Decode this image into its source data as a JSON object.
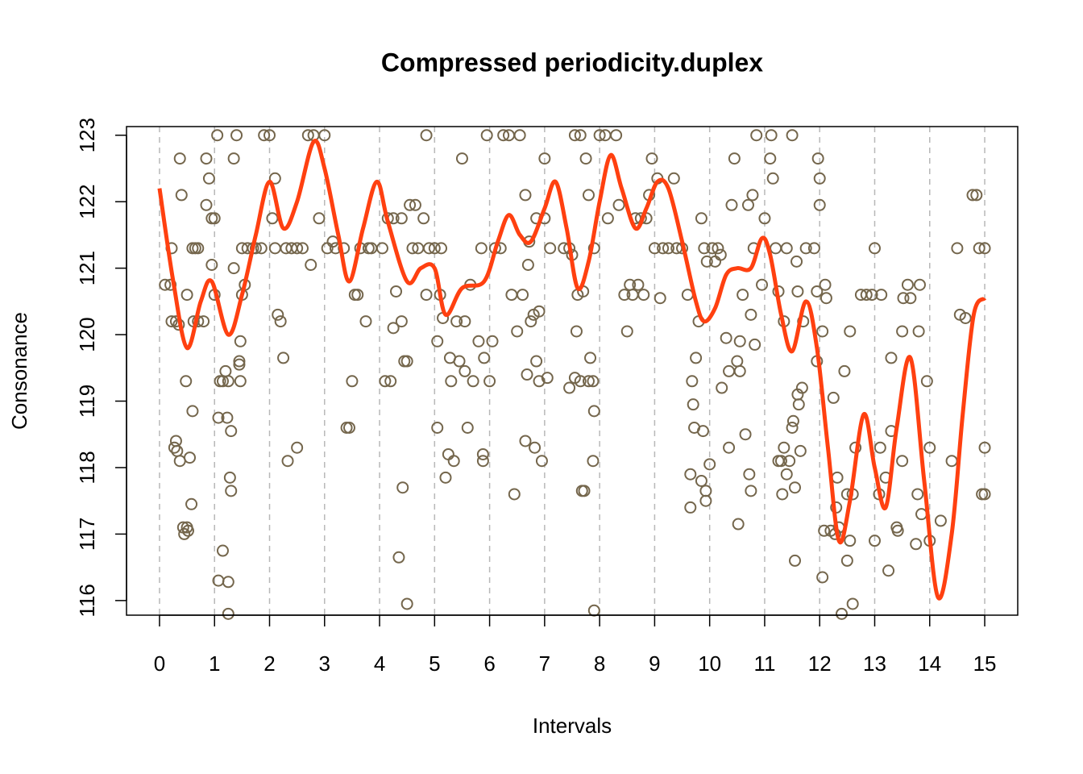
{
  "chart_data": {
    "type": "scatter",
    "title": "Compressed periodicity.duplex",
    "x_label": "Intervals",
    "y_label": "Consonance",
    "xlim": [
      -0.6,
      15.6
    ],
    "ylim": [
      115.78,
      123.13
    ],
    "xticks": [
      0,
      1,
      2,
      3,
      4,
      5,
      6,
      7,
      8,
      9,
      10,
      11,
      12,
      13,
      14,
      15
    ],
    "yticks": [
      116,
      117,
      118,
      119,
      120,
      121,
      122,
      123
    ],
    "vertical_grid": true,
    "points": {
      "color": "#74664c",
      "x": [
        0.1,
        0.2,
        0.22,
        0.22,
        0.3,
        0.35,
        0.37,
        0.4,
        0.27,
        0.3,
        0.32,
        0.37,
        0.43,
        0.45,
        0.5,
        0.52,
        0.48,
        0.5,
        0.55,
        0.58,
        0.6,
        0.6,
        0.65,
        0.7,
        0.62,
        0.7,
        0.8,
        0.85,
        0.85,
        0.9,
        0.95,
        1.0,
        0.95,
        1.0,
        1.05,
        1.07,
        1.07,
        1.15,
        1.1,
        1.15,
        1.2,
        1.25,
        1.23,
        1.25,
        1.28,
        1.3,
        1.3,
        1.25,
        1.35,
        1.35,
        1.4,
        1.45,
        1.45,
        1.47,
        1.47,
        1.5,
        1.5,
        1.55,
        1.6,
        1.7,
        1.75,
        1.85,
        1.9,
        2.0,
        2.05,
        2.1,
        2.1,
        2.15,
        2.2,
        2.25,
        2.3,
        2.33,
        2.4,
        2.5,
        2.5,
        2.6,
        2.7,
        2.75,
        2.8,
        2.9,
        3.0,
        3.05,
        3.15,
        3.2,
        3.35,
        3.4,
        3.45,
        3.5,
        3.55,
        3.6,
        3.65,
        3.75,
        3.8,
        3.85,
        4.05,
        4.1,
        4.15,
        4.2,
        4.25,
        4.25,
        4.3,
        4.35,
        4.4,
        4.4,
        4.42,
        4.45,
        4.5,
        4.5,
        4.55,
        4.6,
        4.65,
        4.7,
        4.8,
        4.85,
        4.85,
        4.9,
        5.0,
        5.05,
        5.05,
        5.1,
        5.12,
        5.15,
        5.2,
        5.25,
        5.28,
        5.3,
        5.35,
        5.4,
        5.45,
        5.5,
        5.55,
        5.55,
        5.6,
        5.65,
        5.7,
        5.8,
        5.85,
        5.88,
        5.88,
        5.9,
        5.95,
        6.0,
        6.05,
        6.1,
        6.2,
        6.25,
        6.35,
        6.4,
        6.45,
        6.5,
        6.55,
        6.6,
        6.65,
        6.65,
        6.68,
        6.7,
        6.72,
        6.75,
        6.8,
        6.82,
        6.85,
        6.85,
        6.9,
        6.9,
        6.95,
        7.0,
        7.0,
        7.05,
        7.1,
        7.35,
        7.45,
        7.45,
        7.5,
        7.55,
        7.55,
        7.58,
        7.6,
        7.65,
        7.65,
        7.68,
        7.7,
        7.72,
        7.75,
        7.8,
        7.8,
        7.83,
        7.88,
        7.88,
        7.9,
        7.9,
        7.9,
        8.0,
        8.1,
        8.15,
        8.3,
        8.35,
        8.45,
        8.5,
        8.55,
        8.6,
        8.65,
        8.7,
        8.75,
        8.8,
        8.85,
        8.9,
        8.95,
        9.0,
        9.05,
        9.1,
        9.15,
        9.25,
        9.35,
        9.4,
        9.5,
        9.6,
        9.65,
        9.65,
        9.68,
        9.7,
        9.72,
        9.75,
        9.8,
        9.85,
        9.85,
        9.88,
        9.9,
        9.93,
        9.93,
        9.95,
        10.0,
        10.05,
        10.1,
        10.15,
        10.2,
        10.22,
        10.3,
        10.35,
        10.35,
        10.4,
        10.45,
        10.5,
        10.52,
        10.55,
        10.55,
        10.6,
        10.65,
        10.7,
        10.72,
        10.75,
        10.75,
        10.78,
        10.8,
        10.82,
        10.85,
        10.95,
        11.0,
        11.1,
        11.12,
        11.15,
        11.2,
        11.25,
        11.25,
        11.3,
        11.32,
        11.35,
        11.35,
        11.4,
        11.4,
        11.45,
        11.5,
        11.5,
        11.52,
        11.55,
        11.55,
        11.58,
        11.6,
        11.6,
        11.62,
        11.65,
        11.68,
        11.7,
        11.75,
        11.9,
        11.95,
        11.95,
        11.97,
        12.0,
        12.0,
        12.05,
        12.05,
        12.08,
        12.1,
        12.12,
        12.2,
        12.25,
        12.28,
        12.3,
        12.32,
        12.35,
        12.4,
        12.45,
        12.5,
        12.5,
        12.55,
        12.55,
        12.6,
        12.6,
        12.65,
        12.75,
        12.85,
        12.95,
        13.0,
        13.0,
        13.08,
        13.1,
        13.12,
        13.2,
        13.25,
        13.3,
        13.3,
        13.4,
        13.42,
        13.5,
        13.5,
        13.52,
        13.6,
        13.65,
        13.75,
        13.78,
        13.8,
        13.82,
        13.85,
        13.95,
        14.0,
        14.0,
        14.2,
        14.4,
        14.5,
        14.55,
        14.65,
        14.78,
        14.85,
        14.9,
        14.95,
        15.0,
        15.0,
        15.0
      ],
      "y": [
        120.75,
        120.75,
        121.3,
        120.2,
        120.2,
        120.15,
        122.65,
        122.1,
        118.3,
        118.4,
        118.25,
        118.1,
        117.1,
        117.0,
        117.1,
        117.05,
        119.3,
        120.6,
        118.15,
        117.45,
        118.85,
        121.3,
        121.3,
        121.3,
        120.2,
        120.2,
        120.2,
        122.65,
        121.95,
        122.35,
        121.75,
        121.75,
        121.05,
        120.6,
        123.0,
        118.75,
        116.3,
        116.75,
        119.3,
        119.3,
        119.45,
        119.3,
        118.75,
        116.28,
        117.85,
        117.65,
        118.55,
        115.8,
        121.0,
        122.65,
        123.0,
        119.55,
        119.6,
        119.9,
        119.3,
        120.6,
        121.3,
        120.75,
        121.3,
        121.3,
        121.3,
        121.3,
        123.0,
        123.0,
        121.75,
        122.35,
        121.3,
        120.3,
        120.2,
        119.65,
        121.3,
        118.1,
        121.3,
        121.3,
        118.3,
        121.3,
        123.0,
        121.05,
        123.0,
        121.75,
        123.0,
        121.3,
        121.4,
        121.3,
        121.3,
        118.6,
        118.6,
        119.3,
        120.6,
        120.6,
        121.3,
        120.2,
        121.3,
        121.3,
        121.3,
        119.3,
        121.75,
        119.3,
        121.75,
        120.1,
        120.65,
        116.65,
        121.75,
        120.2,
        117.7,
        119.6,
        119.6,
        115.95,
        121.95,
        121.3,
        121.95,
        121.3,
        121.75,
        120.6,
        123.0,
        121.3,
        121.3,
        118.6,
        119.9,
        120.6,
        121.3,
        120.25,
        117.85,
        118.2,
        119.65,
        119.3,
        118.1,
        120.2,
        119.6,
        122.65,
        120.2,
        119.45,
        118.6,
        120.75,
        119.3,
        119.9,
        121.3,
        118.2,
        118.1,
        119.65,
        123.0,
        119.3,
        119.9,
        121.3,
        121.3,
        123.0,
        123.0,
        120.6,
        117.6,
        120.05,
        123.0,
        120.6,
        122.1,
        118.4,
        119.4,
        121.05,
        121.4,
        120.2,
        120.3,
        118.3,
        121.75,
        119.6,
        120.35,
        119.3,
        118.1,
        121.75,
        122.65,
        119.35,
        121.3,
        121.3,
        121.3,
        119.2,
        121.2,
        123.0,
        119.35,
        120.05,
        120.6,
        119.3,
        123.0,
        117.65,
        120.65,
        117.65,
        122.65,
        119.3,
        122.1,
        119.65,
        119.3,
        118.1,
        118.85,
        115.85,
        121.3,
        123.0,
        123.0,
        121.75,
        123.0,
        121.95,
        120.6,
        120.05,
        120.75,
        120.6,
        121.75,
        120.75,
        121.75,
        120.6,
        121.75,
        122.1,
        122.65,
        121.3,
        122.35,
        120.55,
        121.3,
        121.3,
        122.35,
        121.3,
        121.3,
        120.6,
        117.4,
        117.9,
        119.3,
        118.95,
        118.6,
        119.65,
        120.2,
        121.75,
        117.8,
        118.55,
        121.3,
        117.5,
        117.65,
        121.1,
        118.05,
        121.3,
        121.1,
        121.3,
        121.2,
        119.2,
        119.95,
        118.3,
        119.45,
        121.95,
        122.65,
        119.6,
        117.15,
        119.9,
        119.45,
        120.6,
        118.5,
        121.95,
        117.9,
        117.65,
        120.3,
        122.1,
        121.3,
        119.85,
        123.0,
        120.75,
        121.75,
        122.65,
        123.0,
        122.35,
        121.3,
        120.65,
        118.1,
        118.1,
        117.6,
        118.3,
        120.2,
        117.9,
        121.3,
        118.1,
        123.0,
        118.6,
        118.7,
        117.7,
        116.6,
        121.1,
        119.1,
        120.65,
        118.95,
        118.25,
        119.2,
        120.2,
        121.3,
        121.3,
        120.65,
        119.6,
        122.65,
        122.35,
        121.95,
        120.05,
        116.35,
        117.05,
        120.75,
        120.55,
        117.05,
        119.05,
        117.0,
        117.4,
        117.85,
        117.1,
        115.8,
        119.45,
        117.6,
        116.6,
        120.05,
        116.9,
        115.95,
        117.6,
        118.3,
        120.6,
        120.6,
        120.6,
        121.3,
        116.9,
        117.6,
        118.3,
        120.6,
        117.85,
        116.45,
        118.55,
        119.65,
        117.1,
        117.05,
        118.1,
        120.05,
        120.55,
        120.75,
        120.55,
        116.85,
        117.6,
        120.05,
        120.75,
        117.3,
        119.3,
        116.9,
        118.3,
        117.2,
        118.1,
        121.3,
        120.3,
        120.25,
        122.1,
        122.1,
        121.3,
        117.6,
        121.3,
        118.3,
        117.6
      ]
    },
    "trend": {
      "color": "#ff4010",
      "x": [
        0,
        0.25,
        0.5,
        0.75,
        0.95,
        1.25,
        1.5,
        1.75,
        2.0,
        2.25,
        2.5,
        2.8,
        3.0,
        3.25,
        3.45,
        3.7,
        3.95,
        4.15,
        4.5,
        4.75,
        5.0,
        5.2,
        5.5,
        5.9,
        6.15,
        6.35,
        6.55,
        6.75,
        7.0,
        7.2,
        7.4,
        7.6,
        7.8,
        8.0,
        8.2,
        8.4,
        8.65,
        8.85,
        9.05,
        9.25,
        9.5,
        9.75,
        9.9,
        10.1,
        10.3,
        10.5,
        10.75,
        10.95,
        11.1,
        11.3,
        11.5,
        11.75,
        11.95,
        12.15,
        12.35,
        12.55,
        12.8,
        13.0,
        13.2,
        13.4,
        13.65,
        13.9,
        14.15,
        14.4,
        14.6,
        14.8,
        15.0
      ],
      "y": [
        122.2,
        120.8,
        119.8,
        120.5,
        120.8,
        120.0,
        120.6,
        121.5,
        122.3,
        121.6,
        122.0,
        122.9,
        122.5,
        121.5,
        120.8,
        121.6,
        122.3,
        121.7,
        120.8,
        121.0,
        121.0,
        120.3,
        120.7,
        120.8,
        121.4,
        121.8,
        121.5,
        121.4,
        121.9,
        122.3,
        121.6,
        120.7,
        121.1,
        122.0,
        122.7,
        122.2,
        121.6,
        121.9,
        122.3,
        122.2,
        121.4,
        120.5,
        120.2,
        120.4,
        120.9,
        121.0,
        121.0,
        121.45,
        121.2,
        120.3,
        119.75,
        120.5,
        119.8,
        118.3,
        116.9,
        117.5,
        118.8,
        118.0,
        117.4,
        118.6,
        119.65,
        117.8,
        116.05,
        117.0,
        118.8,
        120.3,
        120.55
      ]
    }
  }
}
